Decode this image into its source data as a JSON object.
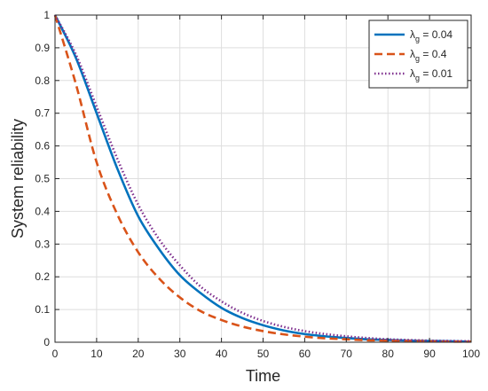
{
  "chart_data": {
    "type": "line",
    "title": "",
    "xlabel": "Time",
    "ylabel": "System reliability",
    "xlim": [
      0,
      100
    ],
    "ylim": [
      0,
      1
    ],
    "x_ticks": [
      "0",
      "10",
      "20",
      "30",
      "40",
      "50",
      "60",
      "70",
      "80",
      "90",
      "100"
    ],
    "y_ticks": [
      "0",
      "0.1",
      "0.2",
      "0.3",
      "0.4",
      "0.5",
      "0.6",
      "0.7",
      "0.8",
      "0.9",
      "1"
    ],
    "grid": true,
    "legend_position": "top-right",
    "x": [
      0,
      5,
      10,
      15,
      20,
      25,
      30,
      35,
      40,
      45,
      50,
      55,
      60,
      65,
      70,
      75,
      80,
      85,
      90,
      95,
      100
    ],
    "series": [
      {
        "name_prefix": "λ",
        "name_subscript": "g",
        "name_suffix": " = 0.04",
        "color": "#0072BD",
        "style": "solid",
        "values": [
          1.0,
          0.87,
          0.7,
          0.53,
          0.385,
          0.285,
          0.205,
          0.15,
          0.105,
          0.074,
          0.052,
          0.036,
          0.025,
          0.018,
          0.013,
          0.009,
          0.007,
          0.005,
          0.004,
          0.003,
          0.002
        ]
      },
      {
        "name_prefix": "λ",
        "name_subscript": "g",
        "name_suffix": " = 0.4",
        "color": "#D95319",
        "style": "dashed",
        "values": [
          1.0,
          0.79,
          0.55,
          0.39,
          0.275,
          0.195,
          0.137,
          0.095,
          0.068,
          0.048,
          0.034,
          0.024,
          0.017,
          0.012,
          0.009,
          0.006,
          0.005,
          0.004,
          0.003,
          0.002,
          0.002
        ]
      },
      {
        "name_prefix": "λ",
        "name_subscript": "g",
        "name_suffix": " = 0.01",
        "color": "#7E2F8E",
        "style": "dotted",
        "values": [
          1.0,
          0.88,
          0.72,
          0.56,
          0.42,
          0.315,
          0.235,
          0.17,
          0.125,
          0.09,
          0.065,
          0.047,
          0.034,
          0.025,
          0.018,
          0.013,
          0.009,
          0.007,
          0.005,
          0.004,
          0.003
        ]
      }
    ]
  }
}
